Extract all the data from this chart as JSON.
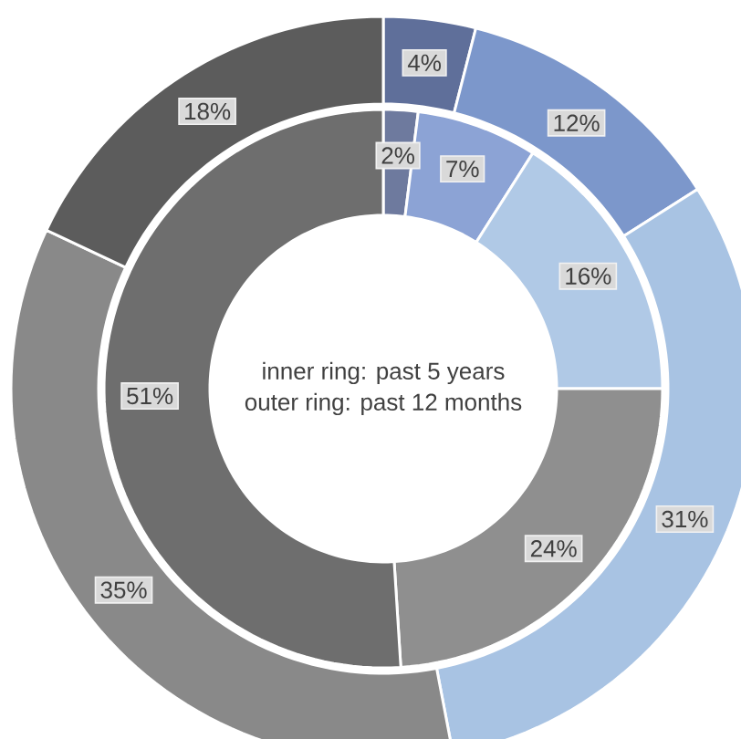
{
  "chart_data": {
    "type": "donut",
    "categories": [
      null,
      null,
      null,
      null,
      null
    ],
    "series": [
      {
        "values": [
          2,
          7,
          16,
          24,
          51
        ],
        "colors": [
          "#6e7a9e",
          "#8ca3d5",
          "#b0c9e6",
          "#8f8f8f",
          "#6e6e6e"
        ],
        "value_labels": [
          "2%",
          "7%",
          "16%",
          "24%",
          "51%"
        ]
      },
      {
        "values": [
          4,
          12,
          31,
          35,
          18
        ],
        "colors": [
          "#5f6f9a",
          "#7c97cb",
          "#a8c3e3",
          "#898989",
          "#5c5c5c"
        ],
        "value_labels": [
          "4%",
          "12%",
          "31%",
          "35%",
          "18%"
        ]
      }
    ],
    "annotations": [
      "inner ring: past 5 years",
      "outer ring: past 12 months"
    ]
  }
}
